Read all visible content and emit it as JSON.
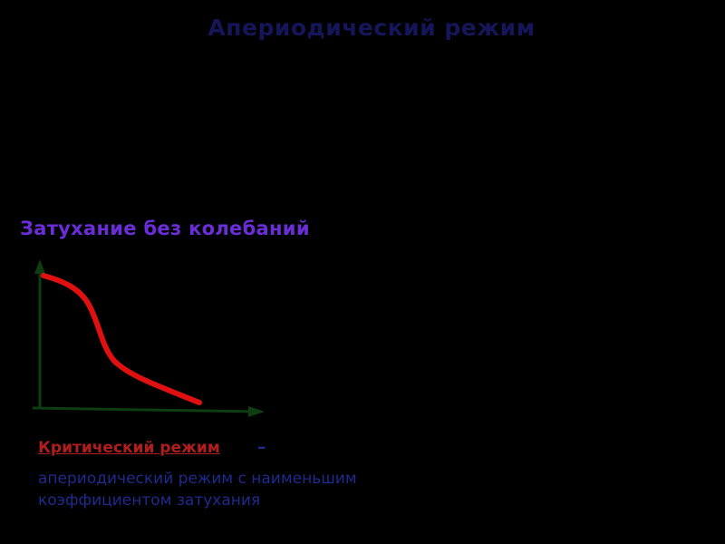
{
  "title": "Апериодический режим",
  "subtitle": "Затухание без колебаний",
  "definition": {
    "term": "Критический режим",
    "dash": "–",
    "line1": "апериодический режим с наименьшим",
    "line2": "коэффициентом затухания"
  },
  "colors": {
    "background": "#000000",
    "title": "#15155a",
    "subtitle": "#6a2dd8",
    "axes": "#0e3d12",
    "curve": "#e01010",
    "term": "#b01d1d",
    "body_text": "#1e2a8c"
  },
  "icons": {
    "y_axis_arrow": "arrow-up",
    "x_axis_arrow": "arrow-right"
  }
}
